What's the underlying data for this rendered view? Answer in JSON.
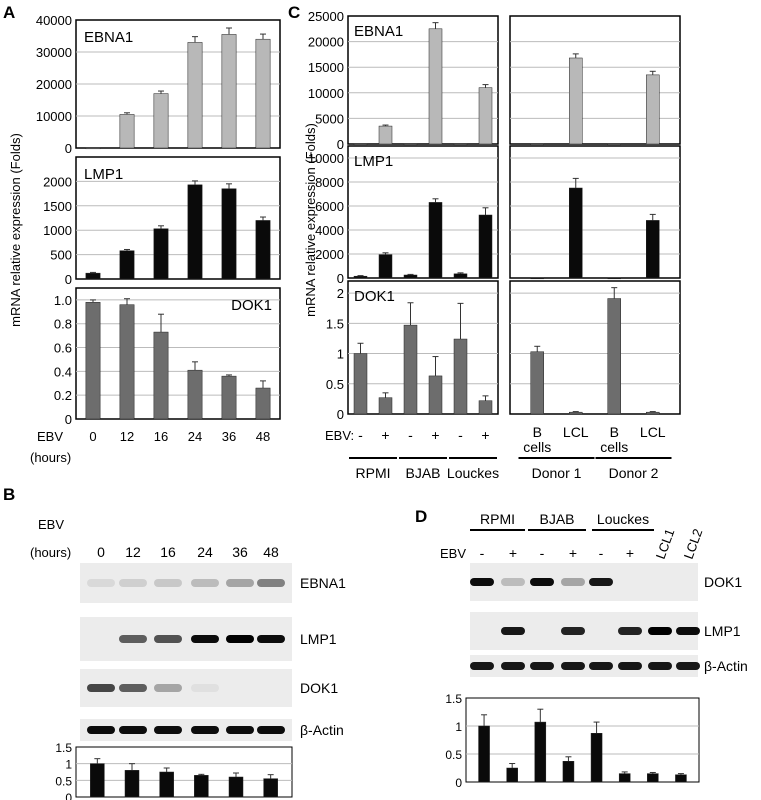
{
  "figure": {
    "panel_labels": {
      "a": "A",
      "b": "B",
      "c": "C",
      "d": "D"
    },
    "ylabel_rna": "mRNA relative expression (Folds)",
    "ebv_label": "EBV",
    "hours_label": "(hours)",
    "ebv_colon_label": "EBV:",
    "beta_actin": "β-Actin",
    "minus": "-",
    "plus": "+"
  },
  "colors": {
    "gray_bar": "#b8b8b8",
    "black_bar": "#0a0a0a",
    "dark_gray_bar": "#6d6d6d",
    "gridline": "#bbbbbb"
  },
  "chart_data": [
    {
      "type": "bar",
      "panel": "A",
      "title": "EBNA1",
      "xlabel": "EBV (hours)",
      "ylabel": "mRNA relative expression (Folds)",
      "categories": [
        "0",
        "12",
        "16",
        "24",
        "36",
        "48"
      ],
      "values": [
        0,
        10500,
        17000,
        33000,
        35500,
        34000
      ],
      "errors": [
        0,
        500,
        800,
        1800,
        2000,
        1600
      ],
      "ylim": [
        0,
        40000
      ],
      "yticks": [
        "0",
        "10000",
        "20000",
        "30000",
        "40000"
      ],
      "grid": true,
      "color": "#b8b8b8"
    },
    {
      "type": "bar",
      "panel": "A",
      "title": "LMP1",
      "categories": [
        "0",
        "12",
        "16",
        "24",
        "36",
        "48"
      ],
      "values": [
        120,
        580,
        1030,
        1930,
        1850,
        1200
      ],
      "errors": [
        15,
        25,
        60,
        80,
        100,
        70
      ],
      "ylim": [
        0,
        2500
      ],
      "yticks": [
        "0",
        "500",
        "1000",
        "1500",
        "2000"
      ],
      "grid": true,
      "color": "#0a0a0a"
    },
    {
      "type": "bar",
      "panel": "A",
      "title": "DOK1",
      "categories": [
        "0",
        "12",
        "16",
        "24",
        "36",
        "48"
      ],
      "values": [
        0.98,
        0.96,
        0.73,
        0.41,
        0.36,
        0.26
      ],
      "errors": [
        0.02,
        0.05,
        0.15,
        0.07,
        0.01,
        0.06
      ],
      "ylim": [
        0,
        1.1
      ],
      "yticks": [
        "0",
        "0.2",
        "0.4",
        "0.6",
        "0.8",
        "1.0"
      ],
      "grid": true,
      "color": "#6d6d6d"
    },
    {
      "type": "bar",
      "panel": "C",
      "title": "EBNA1",
      "group_labels": [
        "RPMI",
        "BJAB",
        "Louckes",
        "Donor 1",
        "Donor 2"
      ],
      "categories": [
        "RPMI -",
        "RPMI +",
        "BJAB -",
        "BJAB +",
        "Louckes -",
        "Louckes +",
        "Donor 1 B cells",
        "Donor 1 LCL",
        "Donor 2 B cells",
        "Donor 2 LCL"
      ],
      "values": [
        0,
        3500,
        0,
        22500,
        0,
        11000,
        0,
        16800,
        0,
        13500
      ],
      "errors": [
        0,
        200,
        0,
        1200,
        0,
        600,
        0,
        800,
        0,
        700
      ],
      "ylim": [
        0,
        25000
      ],
      "yticks": [
        "0",
        "5000",
        "10000",
        "15000",
        "20000",
        "25000"
      ],
      "grid": true,
      "color": "#b8b8b8"
    },
    {
      "type": "bar",
      "panel": "C",
      "title": "LMP1",
      "categories": [
        "RPMI -",
        "RPMI +",
        "BJAB -",
        "BJAB +",
        "Louckes -",
        "Louckes +",
        "Donor 1 B cells",
        "Donor 1 LCL",
        "Donor 2 B cells",
        "Donor 2 LCL"
      ],
      "values": [
        150,
        1950,
        250,
        6300,
        350,
        5250,
        0,
        7500,
        0,
        4800
      ],
      "errors": [
        50,
        150,
        50,
        300,
        80,
        600,
        0,
        800,
        0,
        500
      ],
      "ylim": [
        0,
        11000
      ],
      "yticks": [
        "0",
        "2000",
        "4000",
        "6000",
        "8000",
        "10000"
      ],
      "grid": true,
      "color": "#0a0a0a"
    },
    {
      "type": "bar",
      "panel": "C",
      "title": "DOK1",
      "categories": [
        "RPMI -",
        "RPMI +",
        "BJAB -",
        "BJAB +",
        "Louckes -",
        "Louckes +",
        "Donor 1 B cells",
        "Donor 1 LCL",
        "Donor 2 B cells",
        "Donor 2 LCL"
      ],
      "values": [
        1.0,
        0.27,
        1.47,
        0.63,
        1.24,
        0.22,
        1.03,
        0.03,
        1.91,
        0.03
      ],
      "errors": [
        0.17,
        0.08,
        0.37,
        0.32,
        0.59,
        0.08,
        0.09,
        0.01,
        0.18,
        0.01
      ],
      "ylim": [
        0,
        2.2
      ],
      "yticks": [
        "0",
        "0.5",
        "1",
        "1.5",
        "2"
      ],
      "grid": true,
      "color": "#6d6d6d"
    },
    {
      "type": "bar",
      "panel": "B",
      "title": "",
      "categories": [
        "0",
        "12",
        "16",
        "24",
        "36",
        "48"
      ],
      "values": [
        1.0,
        0.8,
        0.75,
        0.65,
        0.6,
        0.55
      ],
      "errors": [
        0.15,
        0.2,
        0.12,
        0.03,
        0.12,
        0.12
      ],
      "ylim": [
        0,
        1.5
      ],
      "yticks": [
        "0",
        "0.5",
        "1",
        "1.5"
      ],
      "grid": true,
      "color": "#0a0a0a"
    },
    {
      "type": "bar",
      "panel": "D",
      "title": "",
      "categories": [
        "RPMI -",
        "RPMI +",
        "BJAB -",
        "BJAB +",
        "Louckes -",
        "Louckes +",
        "LCL1",
        "LCL2"
      ],
      "values": [
        1.0,
        0.25,
        1.07,
        0.37,
        0.87,
        0.15,
        0.15,
        0.13
      ],
      "errors": [
        0.2,
        0.08,
        0.23,
        0.08,
        0.2,
        0.03,
        0.02,
        0.02
      ],
      "ylim": [
        0,
        1.5
      ],
      "yticks": [
        "0",
        "0.5",
        "1",
        "1.5"
      ],
      "grid": true,
      "color": "#0a0a0a"
    }
  ],
  "blot_b": {
    "hours": [
      "0",
      "12",
      "16",
      "24",
      "36",
      "48"
    ],
    "rows": [
      {
        "label": "EBNA1",
        "intensities": [
          0.08,
          0.12,
          0.15,
          0.2,
          0.3,
          0.45
        ]
      },
      {
        "label": "LMP1",
        "intensities": [
          0,
          0.6,
          0.65,
          0.95,
          1.0,
          0.95
        ]
      },
      {
        "label": "DOK1",
        "intensities": [
          0.7,
          0.6,
          0.3,
          0.05,
          0,
          0
        ]
      },
      {
        "label": "β-Actin",
        "intensities": [
          0.95,
          0.95,
          0.95,
          0.95,
          0.95,
          0.95
        ]
      }
    ]
  },
  "blot_d": {
    "groups": [
      "RPMI",
      "BJAB",
      "Louckes"
    ],
    "lanes": [
      "-",
      "+",
      "-",
      "+",
      "-",
      "+",
      "LCL1",
      "LCL2"
    ],
    "rows": [
      {
        "label": "DOK1",
        "intensities": [
          0.95,
          0.2,
          0.95,
          0.3,
          0.9,
          0,
          0,
          0
        ]
      },
      {
        "label": "LMP1",
        "intensities": [
          0,
          0.9,
          0,
          0.85,
          0,
          0.85,
          1.0,
          0.95
        ]
      },
      {
        "label": "β-Actin",
        "intensities": [
          0.9,
          0.9,
          0.9,
          0.9,
          0.9,
          0.9,
          0.9,
          0.9
        ]
      }
    ]
  },
  "c_xaxis": {
    "lanes_left": [
      "-",
      "+",
      "-",
      "+",
      "-",
      "+"
    ],
    "groups_left": [
      "RPMI",
      "BJAB",
      "Louckes"
    ],
    "lanes_right": [
      [
        "B",
        "cells"
      ],
      [
        "LCL"
      ],
      [
        "B",
        "cells"
      ],
      [
        "LCL"
      ]
    ],
    "groups_right": [
      "Donor 1",
      "Donor 2"
    ]
  }
}
